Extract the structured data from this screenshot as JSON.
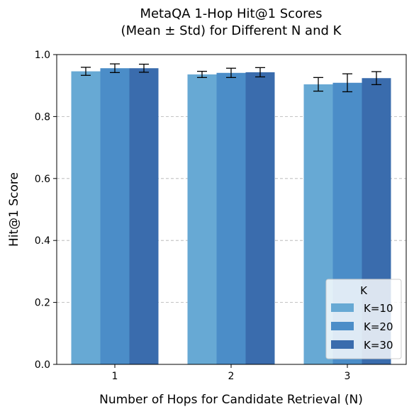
{
  "chart_data": {
    "type": "bar",
    "title": [
      "MetaQA 1-Hop Hit@1 Scores",
      "(Mean ± Std) for Different N and K"
    ],
    "xlabel": "Number of Hops for Candidate Retrieval (N)",
    "ylabel": "Hit@1 Score",
    "categories": [
      "1",
      "2",
      "3"
    ],
    "ylim": [
      0,
      1.0
    ],
    "yticks": [
      "0.0",
      "0.2",
      "0.4",
      "0.6",
      "0.8",
      "1.0"
    ],
    "grid": "y-dashed",
    "legend": {
      "title": "K",
      "placement": "bottom-right"
    },
    "series": [
      {
        "name": "K=10",
        "color": "#67a9d4",
        "values": [
          0.946,
          0.936,
          0.904
        ],
        "std": [
          0.013,
          0.01,
          0.022
        ]
      },
      {
        "name": "K=20",
        "color": "#4b8dc8",
        "values": [
          0.956,
          0.941,
          0.909
        ],
        "std": [
          0.014,
          0.015,
          0.029
        ]
      },
      {
        "name": "K=30",
        "color": "#3a6cad",
        "values": [
          0.956,
          0.943,
          0.924
        ],
        "std": [
          0.013,
          0.015,
          0.021
        ]
      }
    ]
  }
}
